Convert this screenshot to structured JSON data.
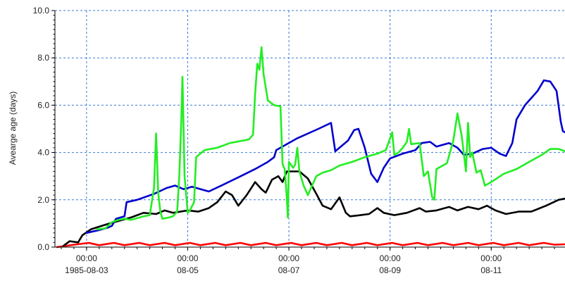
{
  "chart_data": {
    "type": "line",
    "title": "",
    "xlabel": "",
    "ylabel": "Avearge age (days)",
    "ylim": [
      0,
      10
    ],
    "yticks": [
      "0.0",
      "2.0",
      "4.0",
      "6.0",
      "8.0",
      "10.0"
    ],
    "xlim": [
      "1985-08-02T09:00",
      "1985-08-12T11:00"
    ],
    "xticks": [
      {
        "x": "1985-08-03T00:00",
        "line1": "00:00",
        "line2": "1985-08-03"
      },
      {
        "x": "1985-08-05T00:00",
        "line1": "00:00",
        "line2": "08-05"
      },
      {
        "x": "1985-08-07T00:00",
        "line1": "00:00",
        "line2": "08-07"
      },
      {
        "x": "1985-08-09T00:00",
        "line1": "00:00",
        "line2": "08-09"
      },
      {
        "x": "1985-08-11T00:00",
        "line1": "00:00",
        "line2": "08-11"
      }
    ],
    "grid": true,
    "series": [
      {
        "color": "#ff0000",
        "points": [
          [
            "1985-08-02T10:00",
            0.0
          ],
          [
            "1985-08-02T18:00",
            0.1
          ],
          [
            "1985-08-03T01:00",
            0.18
          ],
          [
            "1985-08-03T06:00",
            0.08
          ],
          [
            "1985-08-03T13:00",
            0.18
          ],
          [
            "1985-08-03T18:00",
            0.08
          ],
          [
            "1985-08-04T01:00",
            0.18
          ],
          [
            "1985-08-04T06:00",
            0.08
          ],
          [
            "1985-08-04T13:00",
            0.18
          ],
          [
            "1985-08-04T18:00",
            0.08
          ],
          [
            "1985-08-05T01:00",
            0.18
          ],
          [
            "1985-08-05T06:00",
            0.08
          ],
          [
            "1985-08-05T13:00",
            0.18
          ],
          [
            "1985-08-05T18:00",
            0.08
          ],
          [
            "1985-08-06T01:00",
            0.18
          ],
          [
            "1985-08-06T06:00",
            0.08
          ],
          [
            "1985-08-06T13:00",
            0.18
          ],
          [
            "1985-08-06T18:00",
            0.08
          ],
          [
            "1985-08-07T01:00",
            0.18
          ],
          [
            "1985-08-07T06:00",
            0.08
          ],
          [
            "1985-08-07T13:00",
            0.18
          ],
          [
            "1985-08-07T18:00",
            0.08
          ],
          [
            "1985-08-08T01:00",
            0.18
          ],
          [
            "1985-08-08T06:00",
            0.08
          ],
          [
            "1985-08-08T13:00",
            0.18
          ],
          [
            "1985-08-08T18:00",
            0.08
          ],
          [
            "1985-08-09T01:00",
            0.18
          ],
          [
            "1985-08-09T06:00",
            0.08
          ],
          [
            "1985-08-09T13:00",
            0.18
          ],
          [
            "1985-08-09T18:00",
            0.08
          ],
          [
            "1985-08-10T01:00",
            0.18
          ],
          [
            "1985-08-10T06:00",
            0.08
          ],
          [
            "1985-08-10T13:00",
            0.18
          ],
          [
            "1985-08-10T18:00",
            0.08
          ],
          [
            "1985-08-11T01:00",
            0.18
          ],
          [
            "1985-08-11T06:00",
            0.08
          ],
          [
            "1985-08-11T13:00",
            0.18
          ],
          [
            "1985-08-11T18:00",
            0.08
          ],
          [
            "1985-08-12T01:00",
            0.18
          ],
          [
            "1985-08-12T06:00",
            0.1
          ],
          [
            "1985-08-12T11:00",
            0.12
          ]
        ]
      },
      {
        "color": "#000000",
        "points": [
          [
            "1985-08-02T13:00",
            0.05
          ],
          [
            "1985-08-02T16:00",
            0.25
          ],
          [
            "1985-08-02T20:00",
            0.2
          ],
          [
            "1985-08-02T22:00",
            0.5
          ],
          [
            "1985-08-03T02:00",
            0.75
          ],
          [
            "1985-08-03T09:00",
            0.95
          ],
          [
            "1985-08-03T15:00",
            1.1
          ],
          [
            "1985-08-03T21:00",
            1.25
          ],
          [
            "1985-08-04T03:00",
            1.45
          ],
          [
            "1985-08-04T09:00",
            1.4
          ],
          [
            "1985-08-04T13:00",
            1.55
          ],
          [
            "1985-08-04T17:00",
            1.45
          ],
          [
            "1985-08-05T00:00",
            1.55
          ],
          [
            "1985-08-05T05:00",
            1.5
          ],
          [
            "1985-08-05T10:00",
            1.65
          ],
          [
            "1985-08-05T14:00",
            1.9
          ],
          [
            "1985-08-05T18:00",
            2.35
          ],
          [
            "1985-08-05T21:00",
            2.2
          ],
          [
            "1985-08-06T00:00",
            1.75
          ],
          [
            "1985-08-06T04:00",
            2.2
          ],
          [
            "1985-08-06T08:00",
            2.75
          ],
          [
            "1985-08-06T11:00",
            2.45
          ],
          [
            "1985-08-06T13:00",
            2.3
          ],
          [
            "1985-08-06T16:00",
            2.85
          ],
          [
            "1985-08-06T19:00",
            3.0
          ],
          [
            "1985-08-06T21:00",
            2.75
          ],
          [
            "1985-08-06T23:00",
            3.2
          ],
          [
            "1985-08-07T05:00",
            3.2
          ],
          [
            "1985-08-07T09:00",
            2.9
          ],
          [
            "1985-08-07T13:00",
            2.25
          ],
          [
            "1985-08-07T16:00",
            1.75
          ],
          [
            "1985-08-07T20:00",
            1.6
          ],
          [
            "1985-08-08T00:00",
            2.1
          ],
          [
            "1985-08-08T03:00",
            1.45
          ],
          [
            "1985-08-08T05:00",
            1.3
          ],
          [
            "1985-08-08T10:00",
            1.35
          ],
          [
            "1985-08-08T14:00",
            1.4
          ],
          [
            "1985-08-08T18:00",
            1.65
          ],
          [
            "1985-08-08T21:00",
            1.45
          ],
          [
            "1985-08-09T02:00",
            1.35
          ],
          [
            "1985-08-09T08:00",
            1.45
          ],
          [
            "1985-08-09T14:00",
            1.65
          ],
          [
            "1985-08-09T17:00",
            1.5
          ],
          [
            "1985-08-09T22:00",
            1.55
          ],
          [
            "1985-08-10T04:00",
            1.7
          ],
          [
            "1985-08-10T08:00",
            1.55
          ],
          [
            "1985-08-10T13:00",
            1.7
          ],
          [
            "1985-08-10T18:00",
            1.6
          ],
          [
            "1985-08-10T22:00",
            1.75
          ],
          [
            "1985-08-11T02:00",
            1.55
          ],
          [
            "1985-08-11T07:00",
            1.4
          ],
          [
            "1985-08-11T13:00",
            1.5
          ],
          [
            "1985-08-11T19:00",
            1.5
          ],
          [
            "1985-08-12T02:00",
            1.75
          ],
          [
            "1985-08-12T08:00",
            2.0
          ],
          [
            "1985-08-12T11:00",
            2.05
          ]
        ]
      },
      {
        "color": "#0000cc",
        "points": [
          [
            "1985-08-03T00:00",
            0.6
          ],
          [
            "1985-08-03T06:00",
            0.72
          ],
          [
            "1985-08-03T10:00",
            0.82
          ],
          [
            "1985-08-03T12:00",
            0.9
          ],
          [
            "1985-08-03T14:00",
            1.2
          ],
          [
            "1985-08-03T18:00",
            1.3
          ],
          [
            "1985-08-03T19:00",
            1.9
          ],
          [
            "1985-08-04T00:00",
            2.0
          ],
          [
            "1985-08-04T08:00",
            2.25
          ],
          [
            "1985-08-04T14:00",
            2.5
          ],
          [
            "1985-08-04T18:00",
            2.6
          ],
          [
            "1985-08-04T22:00",
            2.45
          ],
          [
            "1985-08-05T02:00",
            2.55
          ],
          [
            "1985-08-05T10:00",
            2.35
          ],
          [
            "1985-08-05T16:00",
            2.6
          ],
          [
            "1985-08-06T00:00",
            2.95
          ],
          [
            "1985-08-06T08:00",
            3.3
          ],
          [
            "1985-08-06T14:00",
            3.6
          ],
          [
            "1985-08-06T17:00",
            3.8
          ],
          [
            "1985-08-06T18:00",
            4.1
          ],
          [
            "1985-08-07T04:00",
            4.6
          ],
          [
            "1985-08-07T14:00",
            5.0
          ],
          [
            "1985-08-07T20:00",
            5.25
          ],
          [
            "1985-08-07T22:00",
            4.05
          ],
          [
            "1985-08-08T04:00",
            4.5
          ],
          [
            "1985-08-08T07:00",
            4.95
          ],
          [
            "1985-08-08T09:00",
            5.0
          ],
          [
            "1985-08-08T12:00",
            4.2
          ],
          [
            "1985-08-08T15:00",
            3.1
          ],
          [
            "1985-08-08T18:00",
            2.75
          ],
          [
            "1985-08-08T21:00",
            3.35
          ],
          [
            "1985-08-09T00:00",
            3.75
          ],
          [
            "1985-08-09T06:00",
            3.95
          ],
          [
            "1985-08-09T12:00",
            4.1
          ],
          [
            "1985-08-09T15:00",
            4.4
          ],
          [
            "1985-08-09T19:00",
            4.45
          ],
          [
            "1985-08-09T22:00",
            4.25
          ],
          [
            "1985-08-10T04:00",
            4.4
          ],
          [
            "1985-08-10T08:00",
            4.2
          ],
          [
            "1985-08-10T11:00",
            3.9
          ],
          [
            "1985-08-10T15:00",
            3.95
          ],
          [
            "1985-08-10T20:00",
            4.15
          ],
          [
            "1985-08-11T00:00",
            4.2
          ],
          [
            "1985-08-11T04:00",
            3.95
          ],
          [
            "1985-08-11T07:00",
            3.85
          ],
          [
            "1985-08-11T10:00",
            4.4
          ],
          [
            "1985-08-11T12:00",
            5.4
          ],
          [
            "1985-08-11T16:00",
            6.0
          ],
          [
            "1985-08-11T22:00",
            6.6
          ],
          [
            "1985-08-12T01:00",
            7.05
          ],
          [
            "1985-08-12T04:00",
            7.0
          ],
          [
            "1985-08-12T07:00",
            6.6
          ],
          [
            "1985-08-12T09:00",
            5.3
          ],
          [
            "1985-08-12T10:00",
            4.9
          ],
          [
            "1985-08-12T11:00",
            4.85
          ]
        ]
      },
      {
        "color": "#22ee22",
        "points": [
          [
            "1985-08-03T05:00",
            0.75
          ],
          [
            "1985-08-03T09:00",
            0.8
          ],
          [
            "1985-08-03T12:00",
            1.05
          ],
          [
            "1985-08-03T15:00",
            1.15
          ],
          [
            "1985-08-03T18:00",
            1.2
          ],
          [
            "1985-08-03T21:00",
            1.15
          ],
          [
            "1985-08-04T03:00",
            1.3
          ],
          [
            "1985-08-04T06:00",
            1.35
          ],
          [
            "1985-08-04T08:00",
            2.5
          ],
          [
            "1985-08-04T09:00",
            4.8
          ],
          [
            "1985-08-04T10:00",
            2.3
          ],
          [
            "1985-08-04T11:00",
            1.5
          ],
          [
            "1985-08-04T12:00",
            1.2
          ],
          [
            "1985-08-04T15:00",
            1.25
          ],
          [
            "1985-08-04T17:00",
            1.3
          ],
          [
            "1985-08-04T19:00",
            1.5
          ],
          [
            "1985-08-04T20:00",
            3.0
          ],
          [
            "1985-08-04T21:00",
            5.5
          ],
          [
            "1985-08-04T21:30",
            7.2
          ],
          [
            "1985-08-04T22:30",
            3.0
          ],
          [
            "1985-08-05T00:00",
            1.45
          ],
          [
            "1985-08-05T01:00",
            1.55
          ],
          [
            "1985-08-05T03:00",
            1.9
          ],
          [
            "1985-08-05T04:00",
            3.8
          ],
          [
            "1985-08-05T08:00",
            4.1
          ],
          [
            "1985-08-05T14:00",
            4.2
          ],
          [
            "1985-08-05T20:00",
            4.4
          ],
          [
            "1985-08-06T02:00",
            4.5
          ],
          [
            "1985-08-06T05:00",
            4.55
          ],
          [
            "1985-08-06T07:00",
            4.75
          ],
          [
            "1985-08-06T08:00",
            6.5
          ],
          [
            "1985-08-06T09:00",
            7.75
          ],
          [
            "1985-08-06T10:00",
            7.5
          ],
          [
            "1985-08-06T11:00",
            8.45
          ],
          [
            "1985-08-06T12:00",
            7.3
          ],
          [
            "1985-08-06T14:00",
            6.2
          ],
          [
            "1985-08-06T17:00",
            6.0
          ],
          [
            "1985-08-06T20:00",
            5.95
          ],
          [
            "1985-08-06T21:00",
            3.5
          ],
          [
            "1985-08-06T22:00",
            3.3
          ],
          [
            "1985-08-06T23:00",
            2.1
          ],
          [
            "1985-08-06T23:30",
            1.25
          ],
          [
            "1985-08-07T00:00",
            3.6
          ],
          [
            "1985-08-07T02:00",
            3.35
          ],
          [
            "1985-08-07T03:00",
            3.5
          ],
          [
            "1985-08-07T04:00",
            4.2
          ],
          [
            "1985-08-07T05:00",
            3.2
          ],
          [
            "1985-08-07T07:00",
            2.6
          ],
          [
            "1985-08-07T09:00",
            2.2
          ],
          [
            "1985-08-07T11:00",
            2.6
          ],
          [
            "1985-08-07T13:00",
            3.0
          ],
          [
            "1985-08-07T16:00",
            3.15
          ],
          [
            "1985-08-07T20:00",
            3.25
          ],
          [
            "1985-08-08T00:00",
            3.45
          ],
          [
            "1985-08-08T06:00",
            3.6
          ],
          [
            "1985-08-08T12:00",
            3.8
          ],
          [
            "1985-08-08T18:00",
            3.95
          ],
          [
            "1985-08-08T22:00",
            4.1
          ],
          [
            "1985-08-09T01:00",
            4.85
          ],
          [
            "1985-08-09T02:00",
            3.9
          ],
          [
            "1985-08-09T04:00",
            4.0
          ],
          [
            "1985-08-09T06:00",
            4.2
          ],
          [
            "1985-08-09T08:00",
            4.45
          ],
          [
            "1985-08-09T09:00",
            5.0
          ],
          [
            "1985-08-09T10:00",
            4.35
          ],
          [
            "1985-08-09T14:00",
            4.4
          ],
          [
            "1985-08-09T16:00",
            3.0
          ],
          [
            "1985-08-09T18:00",
            3.2
          ],
          [
            "1985-08-09T20:00",
            2.1
          ],
          [
            "1985-08-09T21:00",
            2.0
          ],
          [
            "1985-08-09T22:00",
            3.3
          ],
          [
            "1985-08-10T00:00",
            3.4
          ],
          [
            "1985-08-10T03:00",
            3.55
          ],
          [
            "1985-08-10T06:00",
            4.5
          ],
          [
            "1985-08-10T08:00",
            5.65
          ],
          [
            "1985-08-10T10:00",
            4.7
          ],
          [
            "1985-08-10T12:00",
            3.2
          ],
          [
            "1985-08-10T13:00",
            5.25
          ],
          [
            "1985-08-10T14:00",
            3.8
          ],
          [
            "1985-08-10T15:00",
            4.0
          ],
          [
            "1985-08-10T17:00",
            3.15
          ],
          [
            "1985-08-10T19:00",
            3.25
          ],
          [
            "1985-08-10T21:00",
            2.6
          ],
          [
            "1985-08-11T00:00",
            2.75
          ],
          [
            "1985-08-11T06:00",
            3.1
          ],
          [
            "1985-08-11T12:00",
            3.3
          ],
          [
            "1985-08-11T18:00",
            3.6
          ],
          [
            "1985-08-12T00:00",
            3.9
          ],
          [
            "1985-08-12T04:00",
            4.15
          ],
          [
            "1985-08-12T08:00",
            4.15
          ],
          [
            "1985-08-12T11:00",
            4.05
          ]
        ]
      }
    ]
  }
}
